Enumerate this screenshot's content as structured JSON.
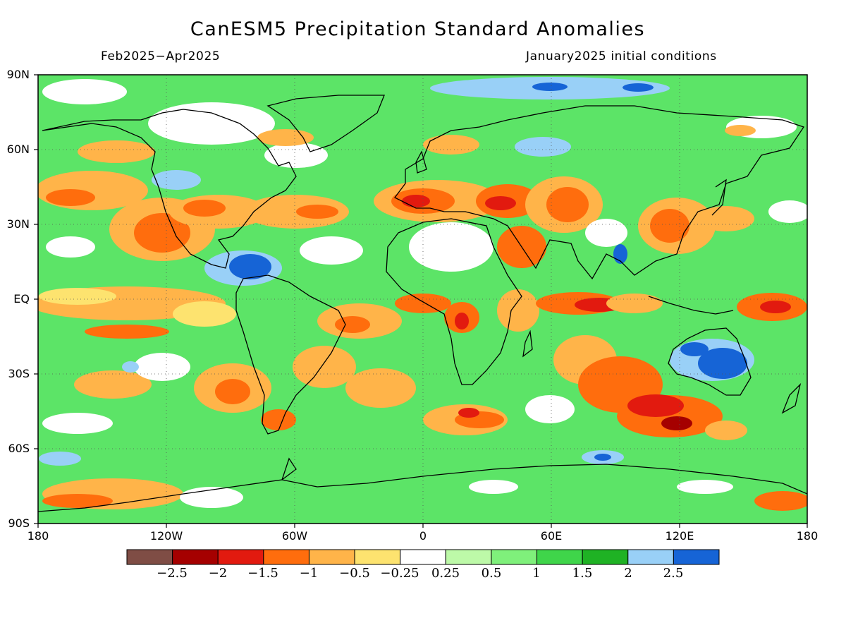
{
  "header": {
    "title": "CanESM5 Precipitation Standard Anomalies",
    "period": "Feb2025−Apr2025",
    "initial_conditions": "January2025 initial conditions"
  },
  "map": {
    "projection": "equirectangular",
    "lon_range": [
      -180,
      180
    ],
    "lat_range": [
      -90,
      90
    ],
    "lat_labels": [
      "90N",
      "60N",
      "30N",
      "EQ",
      "30S",
      "60S",
      "90S"
    ],
    "lon_labels": [
      "180",
      "120W",
      "60W",
      "0",
      "60E",
      "120E",
      "180"
    ],
    "gridlines": "dotted",
    "background_color": "#5ce467",
    "frame_color": "#000000"
  },
  "colorbar": {
    "colors": [
      "#7f4d45",
      "#a50000",
      "#e21a0f",
      "#ff6d0d",
      "#ffb449",
      "#fde36f",
      "#ffffff",
      "#bdf9a8",
      "#7ff07b",
      "#3fd54a",
      "#1fb224",
      "#99d0f7",
      "#1664d6"
    ],
    "labels": [
      "−2.5",
      "−2",
      "−1.5",
      "−1",
      "−0.5",
      "−0.25",
      "0.25",
      "0.5",
      "1",
      "1.5",
      "2",
      "2.5"
    ]
  }
}
